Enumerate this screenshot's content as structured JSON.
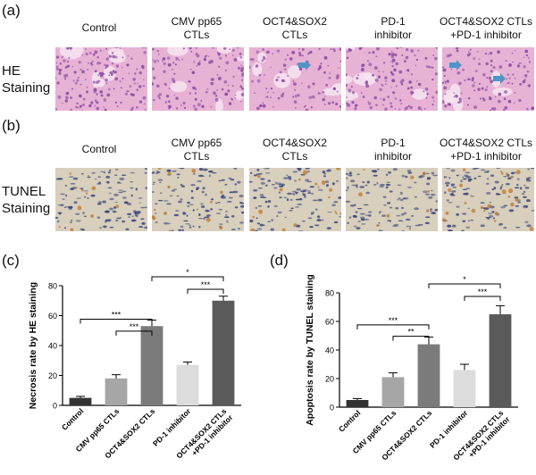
{
  "panels": {
    "a": "(a)",
    "b": "(b)",
    "c": "(c)",
    "d": "(d)"
  },
  "columns": [
    "Control",
    "CMV pp65\nCTLs",
    "OCT4&SOX2\nCTLs",
    "PD-1\ninhibitor",
    "OCT4&SOX2 CTLs\n+PD-1 inhibitor"
  ],
  "rows": {
    "he": "HE\nStaining",
    "tunel": "TUNEL\nStaining"
  },
  "colors": {
    "he_base": "#e7b2d4",
    "he_nuclei": "#8d4aa6",
    "tunel_base": "#d8cfbc",
    "tunel_nuclei": "#2d3a7a",
    "tunel_positive": "#c17a33",
    "arrow": "#4f95c9",
    "bars": [
      "#333333",
      "#a6a6a6",
      "#7b7b7b",
      "#dcdcdc",
      "#5a5a5a"
    ]
  },
  "icons": [
    "blue-arrow-icon"
  ],
  "chart_data": [
    {
      "type": "bar",
      "ylabel": "Necrosis rate by HE staining",
      "ylim": [
        0,
        80
      ],
      "yticks": [
        0,
        20,
        40,
        60,
        80
      ],
      "categories": [
        "Control",
        "CMV pp65 CTLs",
        "OCT4&SOX2 CTLs",
        "PD-1 inhibitor",
        "OCT4&SOX2 CTLs\n+PD-1 inhibitor"
      ],
      "values": [
        5,
        18,
        53,
        27,
        70
      ],
      "errors": [
        1,
        2.5,
        4,
        2,
        3
      ],
      "significance": [
        {
          "from": 0,
          "to": 2,
          "label": "***"
        },
        {
          "from": 1,
          "to": 2,
          "label": "***"
        },
        {
          "from": 2,
          "to": 4,
          "label": "*"
        },
        {
          "from": 3,
          "to": 4,
          "label": "***"
        }
      ]
    },
    {
      "type": "bar",
      "ylabel": "Apoptosis rate by TUNEL staining",
      "ylim": [
        0,
        80
      ],
      "yticks": [
        0,
        20,
        40,
        60,
        80
      ],
      "categories": [
        "Control",
        "CMV pp65 CTLs",
        "OCT4&SOX2 CTLs",
        "PD-1 inhibitor",
        "OCT4&SOX2 CTLs\n+PD-1 inhibitor"
      ],
      "values": [
        5,
        21,
        44,
        26,
        65
      ],
      "errors": [
        1,
        3,
        5,
        4,
        6
      ],
      "significance": [
        {
          "from": 0,
          "to": 2,
          "label": "***"
        },
        {
          "from": 1,
          "to": 2,
          "label": "**"
        },
        {
          "from": 2,
          "to": 4,
          "label": "*"
        },
        {
          "from": 3,
          "to": 4,
          "label": "***"
        }
      ]
    }
  ]
}
